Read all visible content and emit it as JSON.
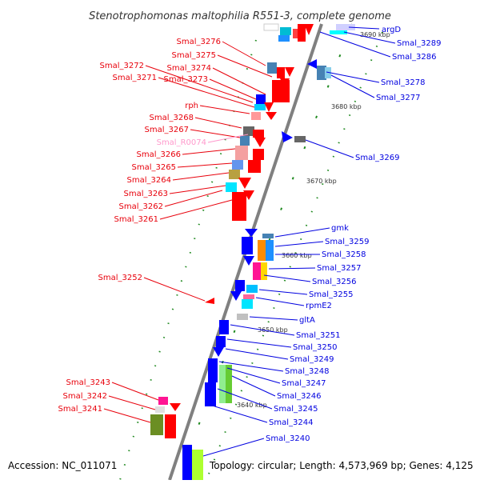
{
  "title": "Stenotrophomonas maltophilia R551-3, complete genome",
  "footer": {
    "accession": "Accession: NC_011071",
    "topology": "Topology: circular; Length: 4,573,969 bp; Genes: 4,125"
  },
  "colors": {
    "left_label": "#e8000b",
    "right_label": "#0000e0",
    "rna_label": "#ff99cc",
    "backbone": "#808080",
    "forward_gene": "#ff0000",
    "reverse_gene": "#0000ff",
    "tick": "#228b22"
  },
  "tick_labels": [
    "3690 kbp",
    "3680 kbp",
    "3670 kbp",
    "3660 kbp",
    "3650 kbp",
    "3640 kbp"
  ],
  "left_labels": [
    "Smal_3276",
    "Smal_3275",
    "Smal_3272",
    "Smal_3274",
    "Smal_3271",
    "Smal_3273",
    "rph",
    "Smal_3268",
    "Smal_3267",
    "Smal_R0074",
    "Smal_3266",
    "Smal_3265",
    "Smal_3264",
    "Smal_3263",
    "Smal_3262",
    "Smal_3261",
    "Smal_3252",
    "Smal_3243",
    "Smal_3242",
    "Smal_3241"
  ],
  "right_labels": [
    "argD",
    "Smal_3289",
    "Smal_3286",
    "Smal_3278",
    "Smal_3277",
    "Smal_3269",
    "gmk",
    "Smal_3259",
    "Smal_3258",
    "Smal_3257",
    "Smal_3256",
    "Smal_3255",
    "rpmE2",
    "gltA",
    "Smal_3251",
    "Smal_3250",
    "Smal_3249",
    "Smal_3248",
    "Smal_3247",
    "Smal_3246",
    "Smal_3245",
    "Smal_3244",
    "Smal_3240"
  ]
}
